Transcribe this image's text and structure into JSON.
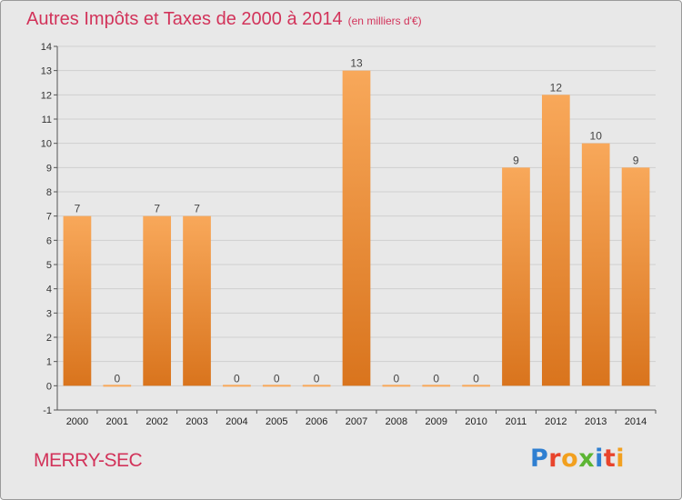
{
  "header": {
    "title": "Autres Impôts et Taxes de 2000 à 2014",
    "unit": "(en milliers d'€)"
  },
  "footer": {
    "commune": "MERRY-SEC",
    "brand": "Proxiti"
  },
  "colors": {
    "title": "#d2335a",
    "bar_light": "#f8a85a",
    "bar_dark": "#d9741d",
    "background": "#e8e8e8",
    "grid": "#cfcfcf",
    "logo": [
      "#2f7fd1",
      "#e8442c",
      "#f2a01f",
      "#5cb533",
      "#2f7fd1",
      "#e8442c",
      "#f2a01f"
    ]
  },
  "chart_data": {
    "type": "bar",
    "title": "Autres Impôts et Taxes de 2000 à 2014",
    "subtitle": "(en milliers d'€)",
    "xlabel": "",
    "ylabel": "",
    "categories": [
      "2000",
      "2001",
      "2002",
      "2003",
      "2004",
      "2005",
      "2006",
      "2007",
      "2008",
      "2009",
      "2010",
      "2011",
      "2012",
      "2013",
      "2014"
    ],
    "values": [
      7,
      0,
      7,
      7,
      0,
      0,
      0,
      13,
      0,
      0,
      0,
      9,
      12,
      10,
      9
    ],
    "data_labels": [
      "7",
      "0",
      "7",
      "7",
      "0",
      "0",
      "0",
      "13",
      "0",
      "0",
      "0",
      "9",
      "12",
      "10",
      "9"
    ],
    "ylim": [
      -1,
      14
    ],
    "yticks": [
      -1,
      0,
      1,
      2,
      3,
      4,
      5,
      6,
      7,
      8,
      9,
      10,
      11,
      12,
      13,
      14
    ],
    "ytick_labels": [
      "-1",
      "0",
      "1",
      "2",
      "3",
      "4",
      "5",
      "6",
      "7",
      "8",
      "9",
      "10",
      "11",
      "12",
      "13",
      "14"
    ],
    "grid": true,
    "legend": "none"
  }
}
